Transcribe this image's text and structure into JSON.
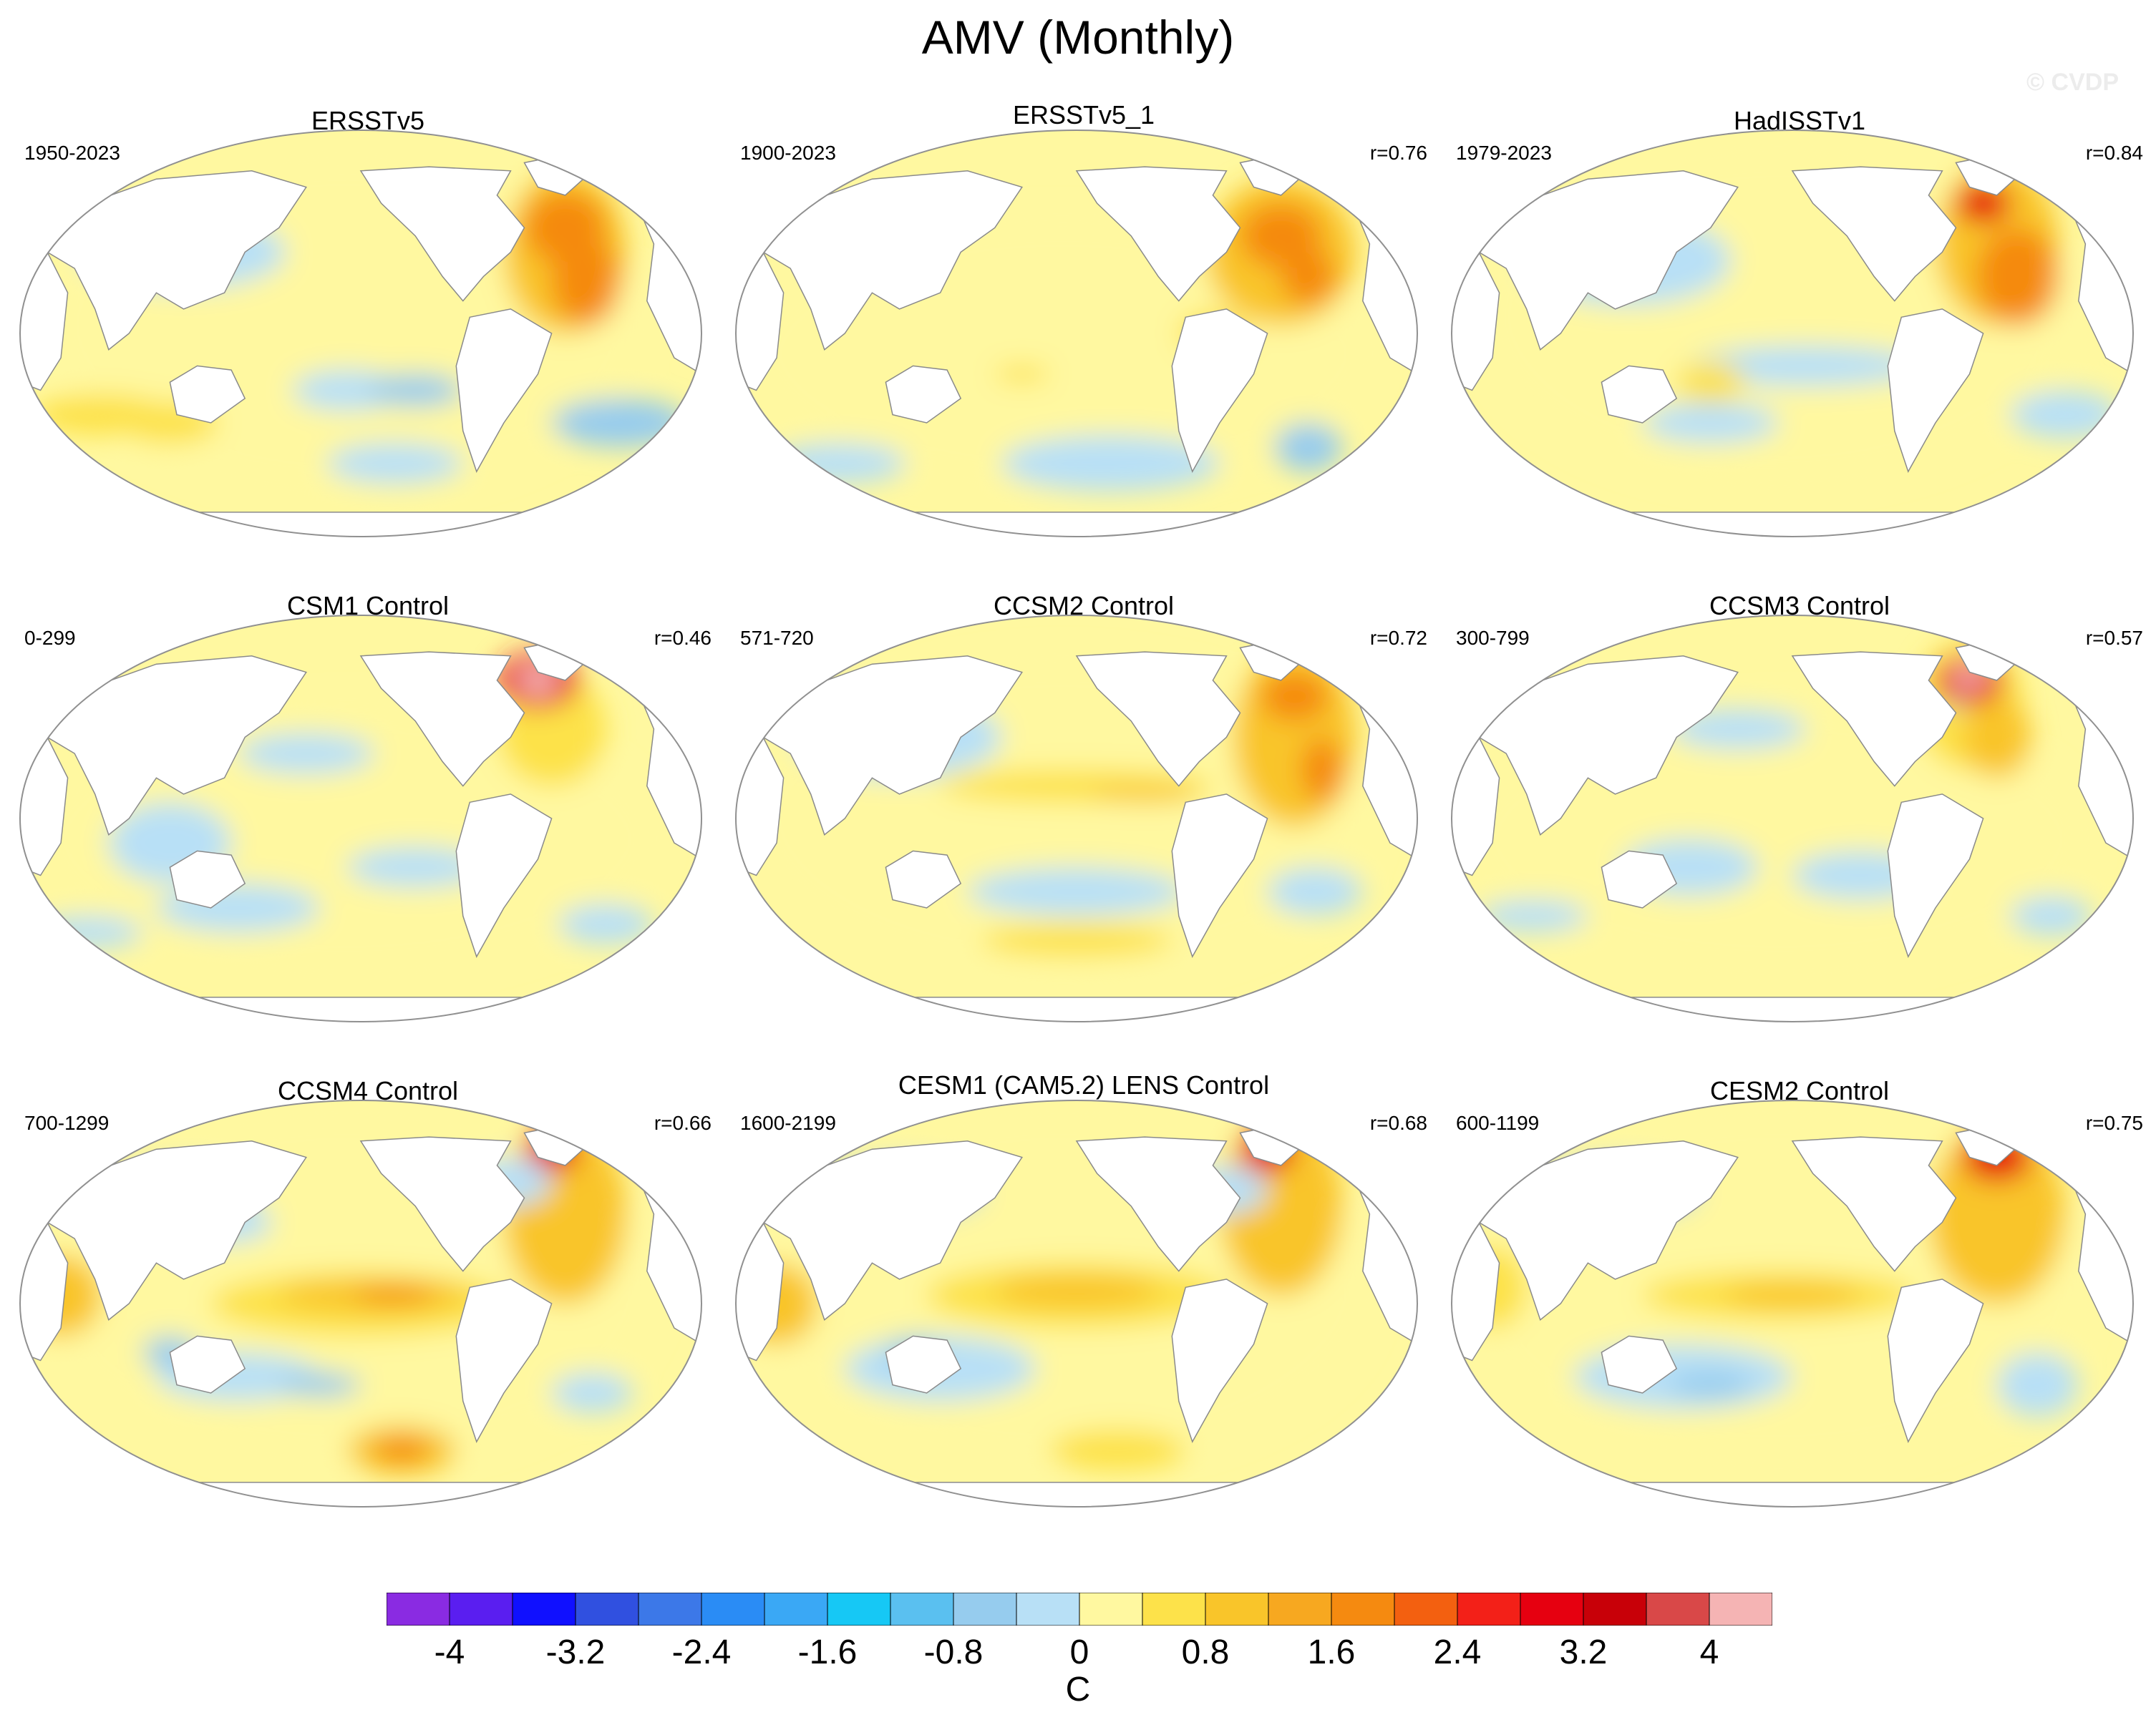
{
  "title": "AMV (Monthly)",
  "watermark": "© CVDP",
  "panels": [
    {
      "name": "ERSSTv5",
      "years": "1950-2023",
      "r": "",
      "blobs": [
        [
          0.48,
          0.48,
          0.44,
          0.42,
          0
        ],
        [
          0.22,
          0.26,
          0.08,
          0.05,
          -3
        ],
        [
          0.24,
          0.3,
          0.15,
          0.09,
          -1
        ],
        [
          0.12,
          0.7,
          0.1,
          0.05,
          1
        ],
        [
          0.22,
          0.72,
          0.07,
          0.05,
          1
        ],
        [
          0.48,
          0.64,
          0.08,
          0.05,
          -1
        ],
        [
          0.58,
          0.64,
          0.07,
          0.04,
          -2
        ],
        [
          0.88,
          0.72,
          0.1,
          0.06,
          -2
        ],
        [
          0.55,
          0.82,
          0.1,
          0.05,
          -1
        ],
        [
          0.8,
          0.3,
          0.09,
          0.2,
          2
        ],
        [
          0.8,
          0.24,
          0.06,
          0.09,
          3
        ],
        [
          0.83,
          0.37,
          0.05,
          0.11,
          3
        ]
      ]
    },
    {
      "name": "ERSSTv5_1",
      "years": "1900-2023",
      "r": "r=0.76",
      "blobs": [
        [
          0.48,
          0.55,
          0.46,
          0.34,
          0
        ],
        [
          0.8,
          0.3,
          0.11,
          0.18,
          2
        ],
        [
          0.8,
          0.26,
          0.06,
          0.08,
          3
        ],
        [
          0.84,
          0.36,
          0.04,
          0.07,
          3
        ],
        [
          0.55,
          0.82,
          0.16,
          0.07,
          -1
        ],
        [
          0.15,
          0.82,
          0.1,
          0.05,
          -1
        ],
        [
          0.84,
          0.78,
          0.05,
          0.06,
          -2
        ],
        [
          0.42,
          0.6,
          0.04,
          0.02,
          1
        ],
        [
          0.7,
          0.5,
          0.05,
          0.05,
          1
        ]
      ]
    },
    {
      "name": "HadISSTv1",
      "years": "1979-2023",
      "r": "r=0.84",
      "blobs": [
        [
          0.48,
          0.46,
          0.44,
          0.42,
          0
        ],
        [
          0.22,
          0.26,
          0.08,
          0.06,
          -3
        ],
        [
          0.26,
          0.32,
          0.15,
          0.11,
          -1
        ],
        [
          0.52,
          0.58,
          0.17,
          0.05,
          -1
        ],
        [
          0.9,
          0.7,
          0.08,
          0.06,
          -1
        ],
        [
          0.38,
          0.72,
          0.1,
          0.05,
          -1
        ],
        [
          0.38,
          0.62,
          0.05,
          0.05,
          1
        ],
        [
          0.8,
          0.28,
          0.09,
          0.2,
          2
        ],
        [
          0.78,
          0.18,
          0.04,
          0.05,
          4
        ],
        [
          0.83,
          0.36,
          0.06,
          0.12,
          3
        ]
      ]
    },
    {
      "name": "CSM1 Control",
      "years": "0-299",
      "r": "r=0.46",
      "blobs": [
        [
          0.48,
          0.55,
          0.46,
          0.34,
          0
        ],
        [
          0.22,
          0.56,
          0.09,
          0.1,
          -1
        ],
        [
          0.32,
          0.72,
          0.12,
          0.06,
          -1
        ],
        [
          0.58,
          0.62,
          0.1,
          0.05,
          -1
        ],
        [
          0.1,
          0.78,
          0.08,
          0.04,
          -1
        ],
        [
          0.86,
          0.76,
          0.07,
          0.05,
          -1
        ],
        [
          0.42,
          0.34,
          0.1,
          0.05,
          -1
        ],
        [
          0.78,
          0.28,
          0.08,
          0.14,
          1
        ],
        [
          0.76,
          0.16,
          0.06,
          0.07,
          4
        ],
        [
          0.76,
          0.16,
          0.03,
          0.04,
          5
        ]
      ]
    },
    {
      "name": "CCSM2 Control",
      "years": "571-720",
      "r": "r=0.72",
      "blobs": [
        [
          0.48,
          0.5,
          0.46,
          0.4,
          0
        ],
        [
          0.2,
          0.24,
          0.09,
          0.06,
          -2
        ],
        [
          0.24,
          0.3,
          0.15,
          0.1,
          -1
        ],
        [
          0.5,
          0.68,
          0.16,
          0.06,
          -1
        ],
        [
          0.85,
          0.68,
          0.07,
          0.06,
          -1
        ],
        [
          0.5,
          0.42,
          0.2,
          0.04,
          1
        ],
        [
          0.6,
          0.44,
          0.08,
          0.02,
          2
        ],
        [
          0.82,
          0.3,
          0.09,
          0.22,
          2
        ],
        [
          0.82,
          0.2,
          0.05,
          0.06,
          3
        ],
        [
          0.86,
          0.38,
          0.03,
          0.08,
          3
        ],
        [
          0.5,
          0.8,
          0.14,
          0.04,
          1
        ]
      ]
    },
    {
      "name": "CCSM3 Control",
      "years": "300-799",
      "r": "r=0.57",
      "blobs": [
        [
          0.48,
          0.55,
          0.46,
          0.34,
          0
        ],
        [
          0.42,
          0.28,
          0.1,
          0.05,
          -1
        ],
        [
          0.35,
          0.62,
          0.1,
          0.07,
          -1
        ],
        [
          0.6,
          0.64,
          0.1,
          0.06,
          -1
        ],
        [
          0.12,
          0.74,
          0.08,
          0.04,
          -1
        ],
        [
          0.88,
          0.74,
          0.06,
          0.05,
          -1
        ],
        [
          0.76,
          0.22,
          0.08,
          0.16,
          1
        ],
        [
          0.8,
          0.3,
          0.05,
          0.1,
          2
        ],
        [
          0.76,
          0.16,
          0.05,
          0.06,
          4
        ],
        [
          0.76,
          0.15,
          0.025,
          0.03,
          5
        ],
        [
          0.74,
          0.22,
          0.01,
          0.012,
          -2
        ]
      ]
    },
    {
      "name": "CCSM4 Control",
      "years": "700-1299",
      "r": "r=0.66",
      "blobs": [
        [
          0.48,
          0.46,
          0.46,
          0.44,
          0
        ],
        [
          0.24,
          0.22,
          0.1,
          0.06,
          -2
        ],
        [
          0.2,
          0.2,
          0.04,
          0.03,
          -3
        ],
        [
          0.3,
          0.3,
          0.07,
          0.05,
          -1
        ],
        [
          0.5,
          0.5,
          0.22,
          0.08,
          1
        ],
        [
          0.52,
          0.48,
          0.14,
          0.04,
          2
        ],
        [
          0.55,
          0.48,
          0.06,
          0.02,
          3
        ],
        [
          0.06,
          0.48,
          0.06,
          0.1,
          2
        ],
        [
          0.32,
          0.68,
          0.12,
          0.06,
          -1
        ],
        [
          0.44,
          0.7,
          0.06,
          0.03,
          -2
        ],
        [
          0.22,
          0.62,
          0.04,
          0.04,
          -2
        ],
        [
          0.56,
          0.86,
          0.08,
          0.06,
          2
        ],
        [
          0.56,
          0.86,
          0.04,
          0.03,
          3
        ],
        [
          0.8,
          0.28,
          0.09,
          0.22,
          2
        ],
        [
          0.78,
          0.12,
          0.04,
          0.06,
          4
        ],
        [
          0.72,
          0.2,
          0.06,
          0.06,
          -1
        ],
        [
          0.84,
          0.72,
          0.06,
          0.05,
          -1
        ]
      ]
    },
    {
      "name": "CESM1 (CAM5.2) LENS Control",
      "years": "1600-2199",
      "r": "r=0.68",
      "blobs": [
        [
          0.48,
          0.46,
          0.46,
          0.44,
          0
        ],
        [
          0.24,
          0.22,
          0.12,
          0.07,
          -2
        ],
        [
          0.18,
          0.2,
          0.04,
          0.03,
          -3
        ],
        [
          0.5,
          0.48,
          0.22,
          0.08,
          1
        ],
        [
          0.5,
          0.47,
          0.12,
          0.04,
          2
        ],
        [
          0.06,
          0.5,
          0.06,
          0.1,
          2
        ],
        [
          0.3,
          0.66,
          0.14,
          0.08,
          -1
        ],
        [
          0.26,
          0.62,
          0.04,
          0.04,
          -2
        ],
        [
          0.56,
          0.86,
          0.1,
          0.05,
          1
        ],
        [
          0.8,
          0.26,
          0.09,
          0.22,
          2
        ],
        [
          0.78,
          0.12,
          0.04,
          0.06,
          4
        ],
        [
          0.72,
          0.22,
          0.06,
          0.06,
          -1
        ]
      ]
    },
    {
      "name": "CESM2 Control",
      "years": "600-1199",
      "r": "r=0.75",
      "blobs": [
        [
          0.48,
          0.46,
          0.46,
          0.44,
          0
        ],
        [
          0.24,
          0.22,
          0.12,
          0.07,
          -2
        ],
        [
          0.48,
          0.48,
          0.2,
          0.06,
          1
        ],
        [
          0.5,
          0.48,
          0.1,
          0.03,
          2
        ],
        [
          0.06,
          0.46,
          0.05,
          0.1,
          1
        ],
        [
          0.34,
          0.68,
          0.16,
          0.08,
          -1
        ],
        [
          0.38,
          0.7,
          0.06,
          0.03,
          -2
        ],
        [
          0.86,
          0.7,
          0.06,
          0.08,
          -1
        ],
        [
          0.8,
          0.28,
          0.1,
          0.22,
          2
        ],
        [
          0.8,
          0.14,
          0.05,
          0.06,
          4
        ]
      ]
    }
  ],
  "colorbar": {
    "colors": [
      "#8a2be2",
      "#5a1ef0",
      "#1010ff",
      "#3050e0",
      "#3c78e8",
      "#2a8cf5",
      "#3aa8f5",
      "#16c8f5",
      "#5ac0f0",
      "#96ccee",
      "#b8e0f6",
      "#fff8a0",
      "#fde24a",
      "#f9c52a",
      "#f7a820",
      "#f58a10",
      "#f36010",
      "#f32018",
      "#e60010",
      "#c80008",
      "#d94848",
      "#f5b4b4"
    ],
    "ticks": [
      "-4",
      "-3.2",
      "-2.4",
      "-1.6",
      "-0.8",
      "0",
      "0.8",
      "1.6",
      "2.4",
      "3.2",
      "4"
    ],
    "unit": "C"
  }
}
